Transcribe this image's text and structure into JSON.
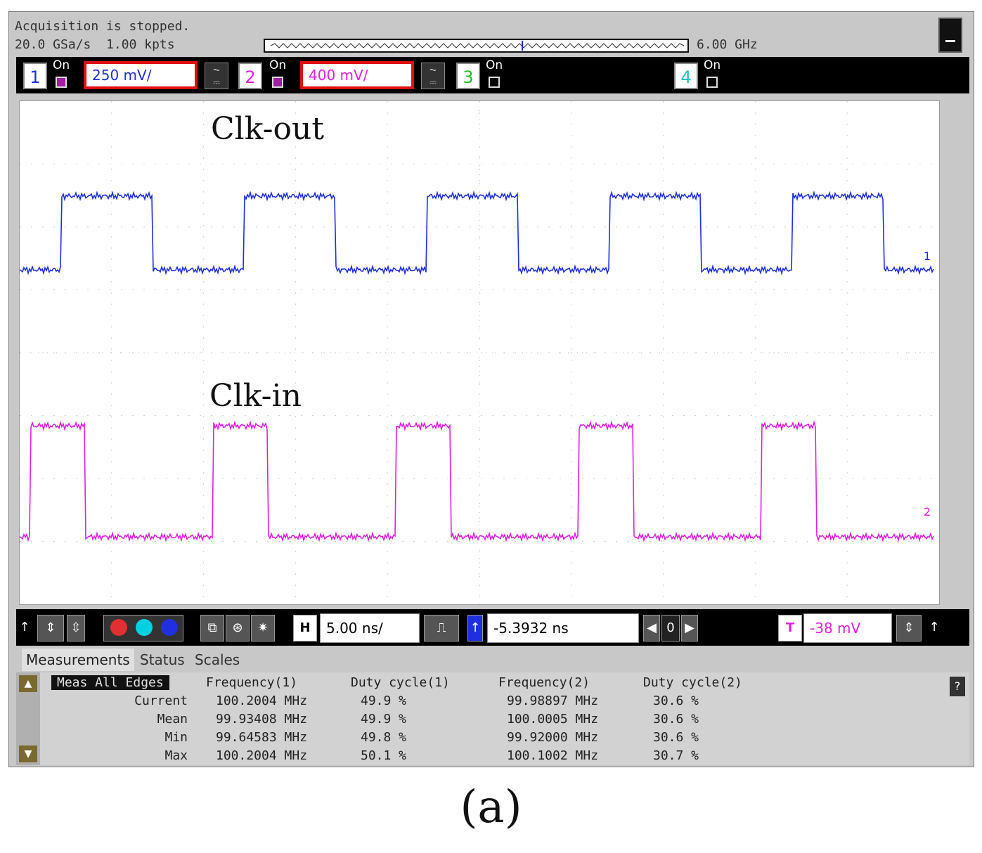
{
  "status": {
    "acquisition": "Acquisition is stopped.",
    "sample_rate": "20.0 GSa/s",
    "points": "1.00 kpts",
    "bandwidth": "6.00 GHz"
  },
  "channels": [
    {
      "num": "1",
      "on_label": "On",
      "scale": "250 mV/",
      "color": "#1f2fe0",
      "enabled": true
    },
    {
      "num": "2",
      "on_label": "On",
      "scale": "400 mV/",
      "color": "#e020e0",
      "enabled": true
    },
    {
      "num": "3",
      "on_label": "On",
      "color": "#20c020",
      "enabled": false
    },
    {
      "num": "4",
      "on_label": "On",
      "color": "#20c0c0",
      "enabled": false
    }
  ],
  "traces": {
    "ch1_label": "Clk-out",
    "ch2_label": "Clk-in",
    "ch1_marker": "1",
    "ch2_marker": "2"
  },
  "controls": {
    "horizontal_label": "H",
    "time_scale": "5.00 ns/",
    "delay": "-5.3932 ns",
    "delay_ref": "0",
    "trigger_label": "T",
    "trigger_level": "-38 mV"
  },
  "tabs": [
    "Measurements",
    "Status",
    "Scales"
  ],
  "measurements": {
    "mode": "Meas All Edges",
    "columns": [
      "Frequency(1)",
      "Duty cycle(1)",
      "Frequency(2)",
      "Duty cycle(2)"
    ],
    "rows": [
      {
        "label": "Current",
        "values": [
          "100.2004 MHz",
          "49.9 %",
          "99.98897 MHz",
          "30.6 %"
        ]
      },
      {
        "label": "Mean",
        "values": [
          "99.93408 MHz",
          "49.9 %",
          "100.0005 MHz",
          "30.6 %"
        ]
      },
      {
        "label": "Min",
        "values": [
          "99.64583 MHz",
          "49.8 %",
          "99.92000 MHz",
          "30.6 %"
        ]
      },
      {
        "label": "Max",
        "values": [
          "100.2004 MHz",
          "50.1 %",
          "100.1002 MHz",
          "30.7 %"
        ]
      }
    ]
  },
  "caption": "(a)"
}
